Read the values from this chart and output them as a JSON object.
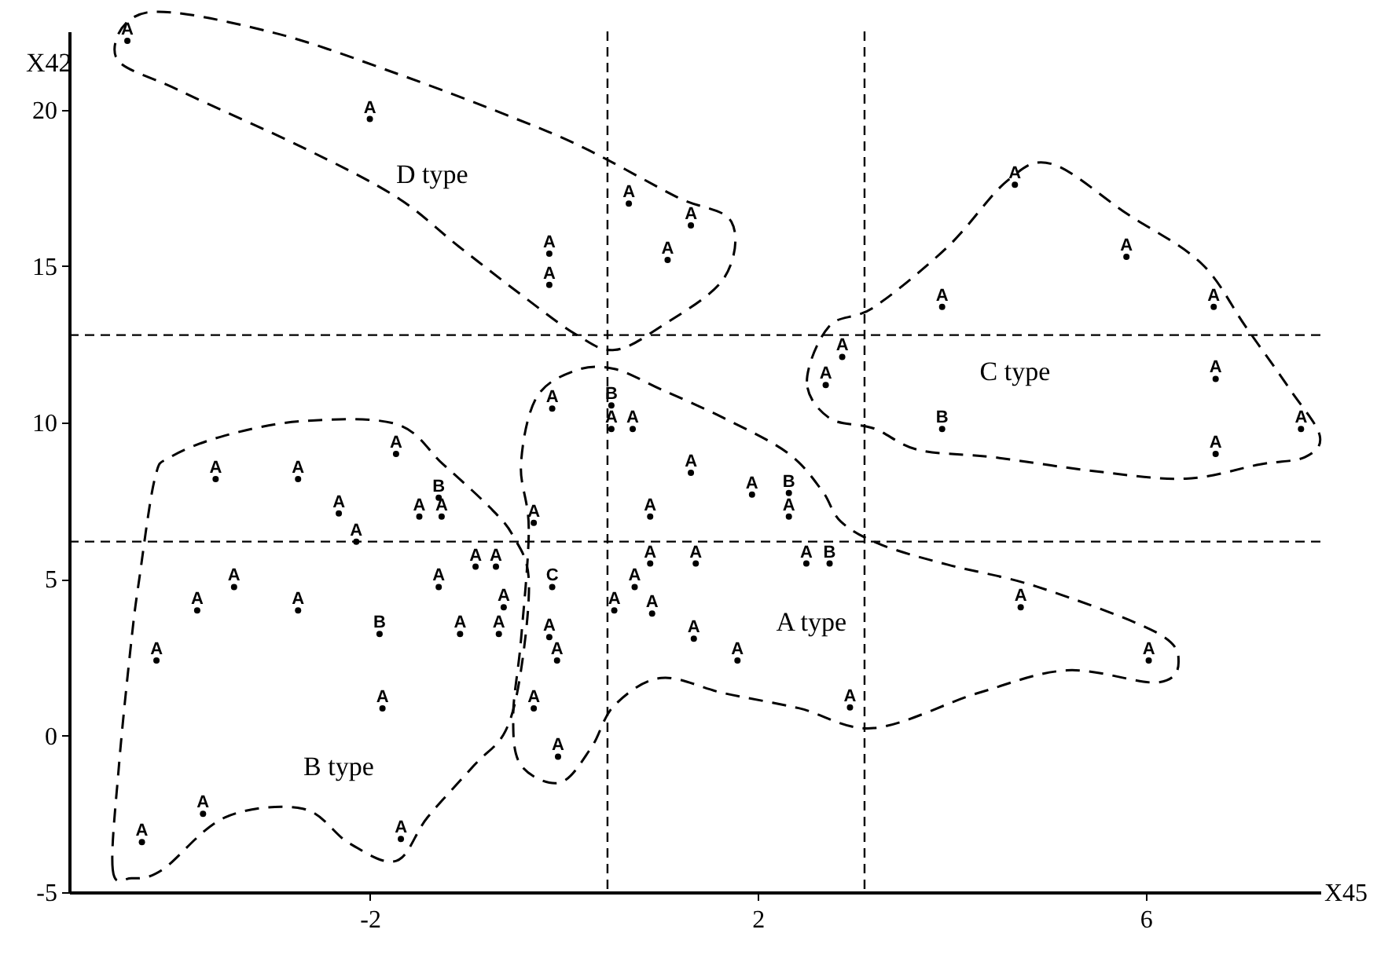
{
  "chart_data": {
    "type": "scatter",
    "xlabel": "X45",
    "ylabel": "X42",
    "xlim": [
      -5.1,
      7.8
    ],
    "ylim": [
      -5,
      22.5
    ],
    "xticks": [
      -2,
      2,
      6
    ],
    "yticks": [
      -5,
      0,
      5,
      10,
      15,
      20
    ],
    "grid": false,
    "series": [
      {
        "name": "A",
        "color": "#000000",
        "x": [
          -4.5,
          -2.0,
          0.67,
          1.31,
          -0.15,
          -0.15,
          1.07,
          4.65,
          5.8,
          3.9,
          6.7,
          2.87,
          2.7,
          6.72,
          7.6,
          6.72,
          -0.12,
          0.49,
          0.71,
          -1.73,
          1.31,
          1.94,
          2.32,
          0.89,
          -0.31,
          -3.59,
          -2.74,
          -2.32,
          -1.49,
          -1.26,
          -2.14,
          -0.91,
          -0.7,
          0.89,
          1.36,
          2.5,
          -3.4,
          -1.29,
          0.73,
          -3.78,
          -2.74,
          -0.62,
          0.52,
          0.91,
          4.71,
          -1.07,
          -0.67,
          -0.15,
          1.34,
          -4.2,
          -0.07,
          1.79,
          6.03,
          -1.87,
          -0.31,
          2.95,
          -0.06,
          -3.72,
          -4.35,
          -1.68
        ],
        "values": [
          22.2,
          19.7,
          17.0,
          16.3,
          15.4,
          14.4,
          15.2,
          17.6,
          15.3,
          13.7,
          13.7,
          12.1,
          11.2,
          11.4,
          9.8,
          9.0,
          10.45,
          9.8,
          9.8,
          9.0,
          8.4,
          7.7,
          7.0,
          7.0,
          6.8,
          8.2,
          8.2,
          7.1,
          7.0,
          7.0,
          6.2,
          5.4,
          5.4,
          5.5,
          5.5,
          5.5,
          4.75,
          4.75,
          4.75,
          4.0,
          4.0,
          4.1,
          4.0,
          3.9,
          4.1,
          3.25,
          3.25,
          3.15,
          3.1,
          2.4,
          2.4,
          2.4,
          2.4,
          0.87,
          0.87,
          0.9,
          -0.67,
          -2.5,
          -3.4,
          -3.3
        ]
      },
      {
        "name": "B",
        "color": "#000000",
        "x": [
          3.9,
          0.49,
          2.32,
          -1.29,
          2.74,
          -1.9
        ],
        "values": [
          9.8,
          10.55,
          7.75,
          7.6,
          5.5,
          3.25
        ]
      },
      {
        "name": "C",
        "color": "#000000",
        "x": [
          -0.12
        ],
        "values": [
          4.75
        ]
      }
    ],
    "ref_lines": [
      {
        "axis": "x",
        "value": 0.45,
        "line_style": "dashed"
      },
      {
        "axis": "x",
        "value": 3.1,
        "line_style": "dashed"
      },
      {
        "axis": "y",
        "value": 12.8,
        "line_style": "dashed"
      },
      {
        "axis": "y",
        "value": 6.2,
        "line_style": "dashed"
      }
    ],
    "annotations": [
      "D type",
      "A type",
      "B type",
      "C type"
    ]
  }
}
